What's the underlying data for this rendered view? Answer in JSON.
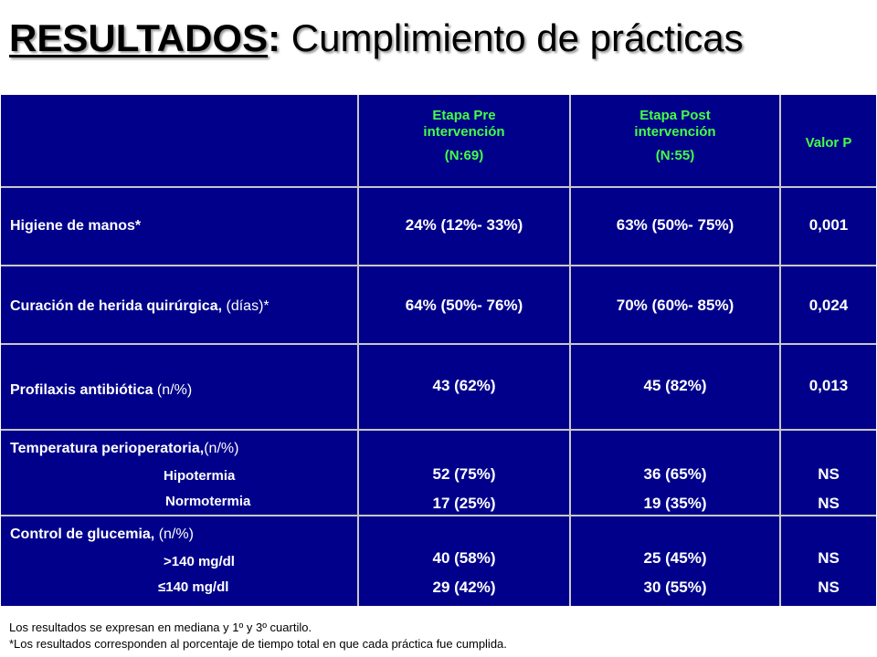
{
  "title": {
    "strong": "RESULTADOS",
    "colon": ":",
    "rest": " Cumplimiento de prácticas"
  },
  "table": {
    "headers": {
      "pre": {
        "line1": "Etapa Pre",
        "line2": "intervención",
        "n": "(N:69)"
      },
      "post": {
        "line1": "Etapa Post",
        "line2": "intervención",
        "n": "(N:55)"
      },
      "p": "Valor P"
    },
    "rows": [
      {
        "label": "Higiene de manos*",
        "suffix": "",
        "pre": "24% (12%- 33%)",
        "post": "63% (50%- 75%)",
        "p": "0,001"
      },
      {
        "label": "Curación de herida quirúrgica,",
        "suffix": " (días)*",
        "pre": "64% (50%- 76%)",
        "post": "70% (60%- 85%)",
        "p": "0,024"
      },
      {
        "label": "Profilaxis antibiótica",
        "suffix": " (n/%)",
        "pre": "43 (62%)",
        "post": "45 (82%)",
        "p": "0,013"
      },
      {
        "label": "Temperatura perioperatoria,",
        "suffix": "(n/%)",
        "subs": [
          "Hipotermia",
          "Normotermia"
        ],
        "pre": [
          "52 (75%)",
          "17 (25%)"
        ],
        "post": [
          "36 (65%)",
          "19 (35%)"
        ],
        "p": [
          "NS",
          "NS"
        ]
      },
      {
        "label": "Control de glucemia,",
        "suffix": " (n/%)",
        "subs": [
          ">140 mg/dl",
          "≤140 mg/dl"
        ],
        "pre": [
          "40 (58%)",
          "29 (42%)"
        ],
        "post": [
          "25 (45%)",
          "30 (55%)"
        ],
        "p": [
          "NS",
          "NS"
        ]
      }
    ]
  },
  "footnotes": [
    "Los resultados se expresan en mediana y 1º y 3º  cuartilo.",
    "*Los resultados corresponden al porcentaje de tiempo total  en que cada práctica fue cumplida."
  ]
}
